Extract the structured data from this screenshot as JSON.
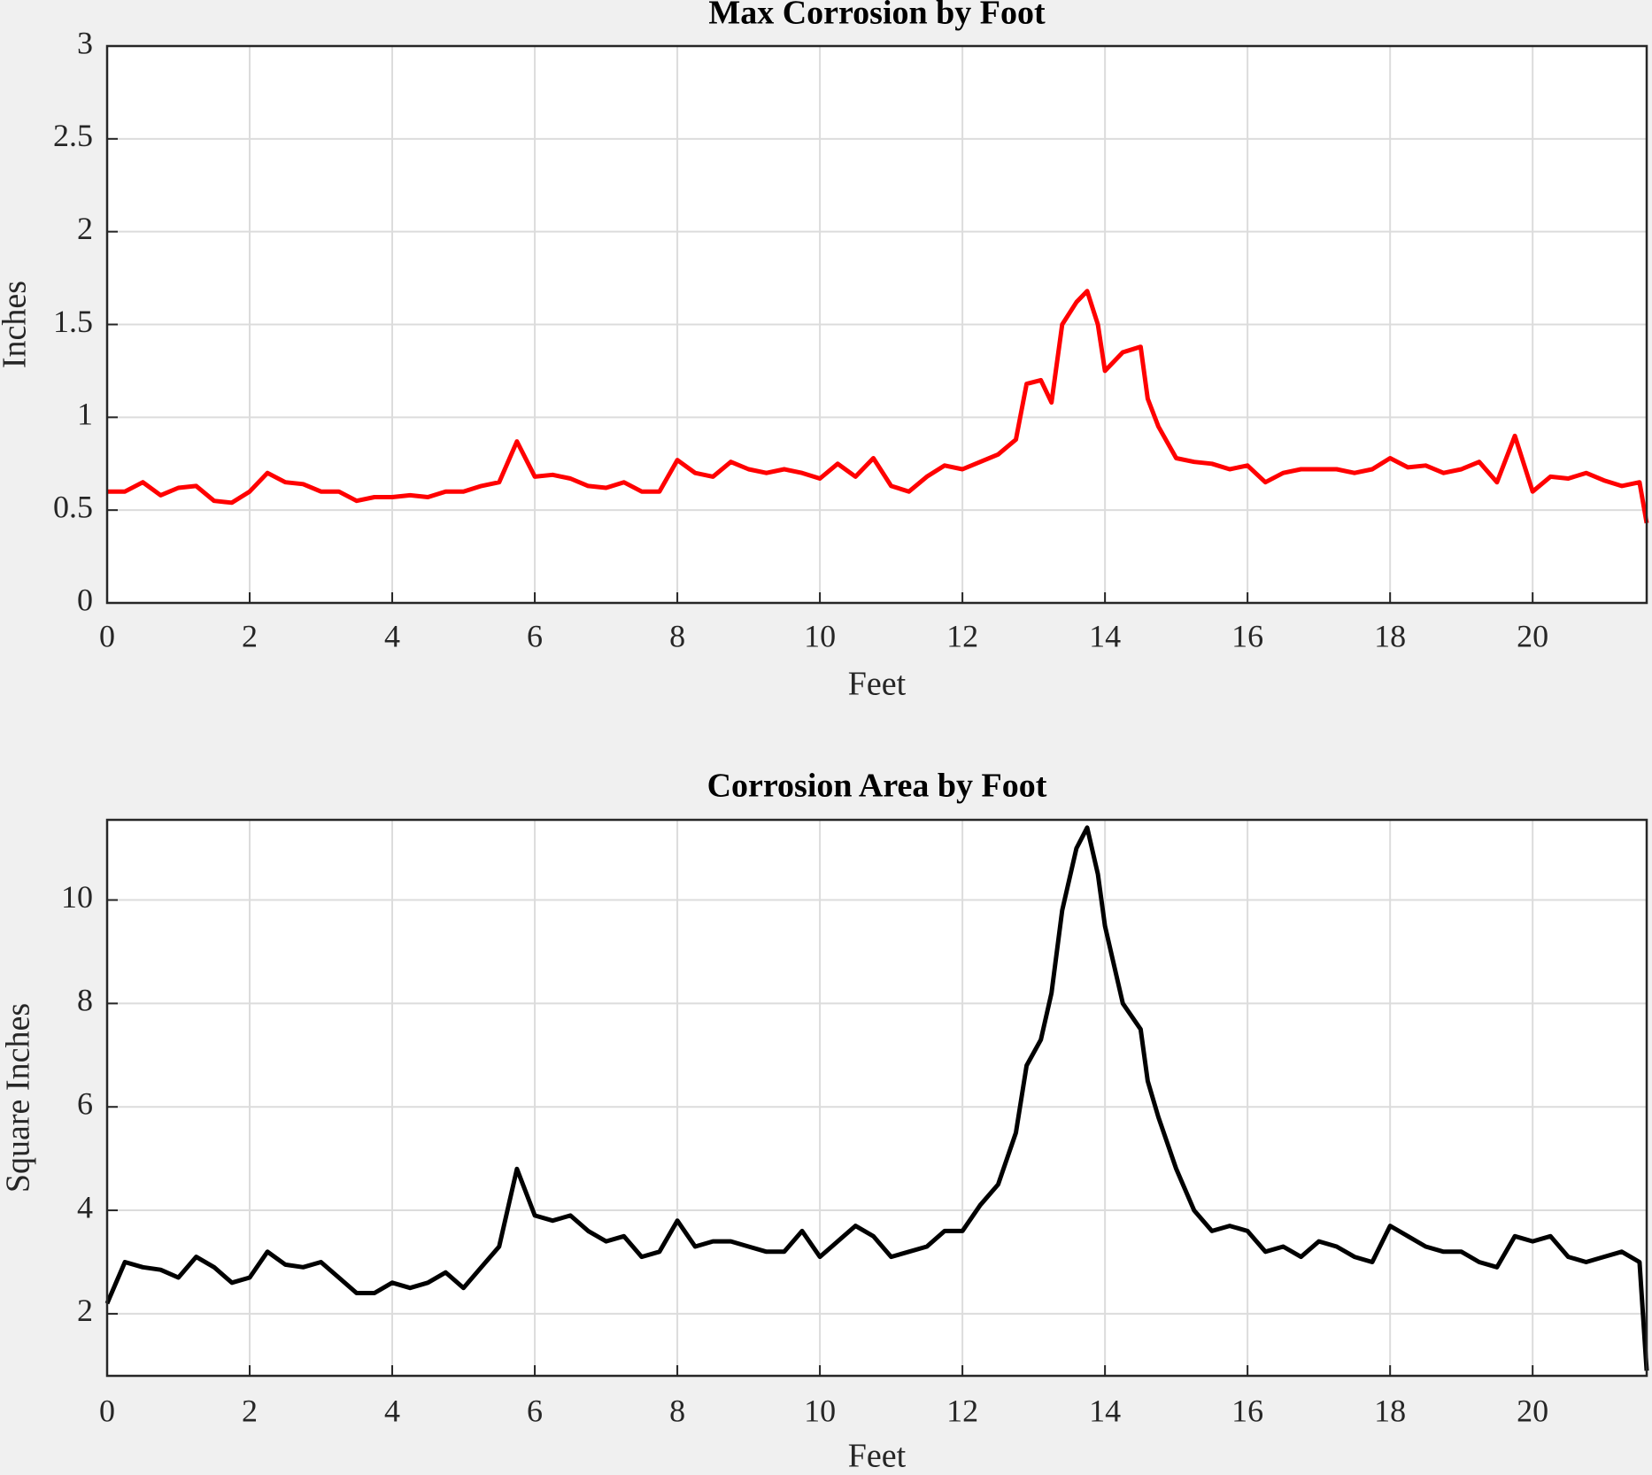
{
  "chart_data": [
    {
      "type": "line",
      "title": "Max Corrosion by Foot",
      "xlabel": "Feet",
      "ylabel": "Inches",
      "color": "#ff0000",
      "x": [
        0,
        0.25,
        0.5,
        0.75,
        1,
        1.25,
        1.5,
        1.75,
        2,
        2.25,
        2.5,
        2.75,
        3,
        3.25,
        3.5,
        3.75,
        4,
        4.25,
        4.5,
        4.75,
        5,
        5.25,
        5.5,
        5.75,
        6,
        6.25,
        6.5,
        6.75,
        7,
        7.25,
        7.5,
        7.75,
        8,
        8.25,
        8.5,
        8.75,
        9,
        9.25,
        9.5,
        9.75,
        10,
        10.25,
        10.5,
        10.75,
        11,
        11.25,
        11.5,
        11.75,
        12,
        12.25,
        12.5,
        12.75,
        12.9,
        13.1,
        13.25,
        13.4,
        13.6,
        13.75,
        13.9,
        14.0,
        14.25,
        14.5,
        14.6,
        14.75,
        15,
        15.25,
        15.5,
        15.75,
        16,
        16.25,
        16.5,
        16.75,
        17,
        17.25,
        17.5,
        17.75,
        18,
        18.25,
        18.5,
        18.75,
        19,
        19.25,
        19.5,
        19.75,
        20,
        20.25,
        20.5,
        20.75,
        21,
        21.25,
        21.5,
        21.6
      ],
      "values": [
        0.6,
        0.6,
        0.65,
        0.58,
        0.62,
        0.63,
        0.55,
        0.54,
        0.6,
        0.7,
        0.65,
        0.64,
        0.6,
        0.6,
        0.55,
        0.57,
        0.57,
        0.58,
        0.57,
        0.6,
        0.6,
        0.63,
        0.65,
        0.87,
        0.68,
        0.69,
        0.67,
        0.63,
        0.62,
        0.65,
        0.6,
        0.6,
        0.77,
        0.7,
        0.68,
        0.76,
        0.72,
        0.7,
        0.72,
        0.7,
        0.67,
        0.75,
        0.68,
        0.78,
        0.63,
        0.6,
        0.68,
        0.74,
        0.72,
        0.76,
        0.8,
        0.88,
        1.18,
        1.2,
        1.08,
        1.5,
        1.62,
        1.68,
        1.5,
        1.25,
        1.35,
        1.38,
        1.1,
        0.95,
        0.78,
        0.76,
        0.75,
        0.72,
        0.74,
        0.65,
        0.7,
        0.72,
        0.72,
        0.72,
        0.7,
        0.72,
        0.78,
        0.73,
        0.74,
        0.7,
        0.72,
        0.76,
        0.65,
        0.9,
        0.6,
        0.68,
        0.67,
        0.7,
        0.66,
        0.63,
        0.65,
        0.43
      ],
      "xlim": [
        0,
        21.6
      ],
      "xticks": [
        0,
        2,
        4,
        6,
        8,
        10,
        12,
        14,
        16,
        18,
        20
      ],
      "ylim": [
        0,
        3
      ],
      "yticks": [
        0,
        0.5,
        1,
        1.5,
        2,
        2.5,
        3
      ],
      "grid": true
    },
    {
      "type": "line",
      "title": "Corrosion Area by Foot",
      "xlabel": "Feet",
      "ylabel": "Square Inches",
      "color": "#000000",
      "x": [
        0,
        0.25,
        0.5,
        0.75,
        1,
        1.25,
        1.5,
        1.75,
        2,
        2.25,
        2.5,
        2.75,
        3,
        3.25,
        3.5,
        3.75,
        4,
        4.25,
        4.5,
        4.75,
        5,
        5.25,
        5.5,
        5.75,
        6,
        6.25,
        6.5,
        6.75,
        7,
        7.25,
        7.5,
        7.75,
        8,
        8.25,
        8.5,
        8.75,
        9,
        9.25,
        9.5,
        9.75,
        10,
        10.25,
        10.5,
        10.75,
        11,
        11.25,
        11.5,
        11.75,
        12,
        12.25,
        12.5,
        12.75,
        12.9,
        13.1,
        13.25,
        13.4,
        13.6,
        13.75,
        13.9,
        14.0,
        14.25,
        14.5,
        14.6,
        14.75,
        15,
        15.25,
        15.5,
        15.75,
        16,
        16.25,
        16.5,
        16.75,
        17,
        17.25,
        17.5,
        17.75,
        18,
        18.25,
        18.5,
        18.75,
        19,
        19.25,
        19.5,
        19.75,
        20,
        20.25,
        20.5,
        20.75,
        21,
        21.25,
        21.5,
        21.6
      ],
      "values": [
        2.2,
        3.0,
        2.9,
        2.85,
        2.7,
        3.1,
        2.9,
        2.6,
        2.7,
        3.2,
        2.95,
        2.9,
        3.0,
        2.7,
        2.4,
        2.4,
        2.6,
        2.5,
        2.6,
        2.8,
        2.5,
        2.9,
        3.3,
        4.8,
        3.9,
        3.8,
        3.9,
        3.6,
        3.4,
        3.5,
        3.1,
        3.2,
        3.8,
        3.3,
        3.4,
        3.4,
        3.3,
        3.2,
        3.2,
        3.6,
        3.1,
        3.4,
        3.7,
        3.5,
        3.1,
        3.2,
        3.3,
        3.6,
        3.6,
        4.1,
        4.5,
        5.5,
        6.8,
        7.3,
        8.2,
        9.8,
        11.0,
        11.4,
        10.5,
        9.5,
        8.0,
        7.5,
        6.5,
        5.8,
        4.8,
        4.0,
        3.6,
        3.7,
        3.6,
        3.2,
        3.3,
        3.1,
        3.4,
        3.3,
        3.1,
        3.0,
        3.7,
        3.5,
        3.3,
        3.2,
        3.2,
        3.0,
        2.9,
        3.5,
        3.4,
        3.5,
        3.1,
        3.0,
        3.1,
        3.2,
        3.0,
        0.9
      ],
      "xlim": [
        0,
        21.6
      ],
      "xticks": [
        0,
        2,
        4,
        6,
        8,
        10,
        12,
        14,
        16,
        18,
        20
      ],
      "ylim": [
        0.8,
        11.55
      ],
      "yticks": [
        2,
        4,
        6,
        8,
        10
      ],
      "grid": true
    }
  ]
}
